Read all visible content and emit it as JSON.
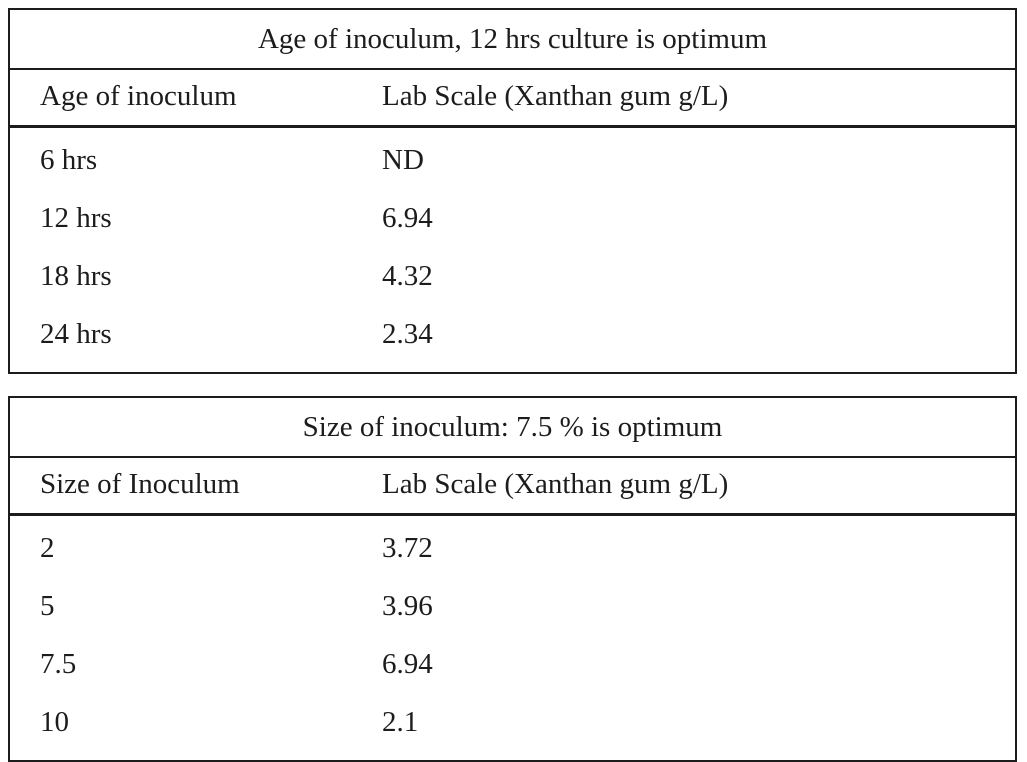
{
  "tables": [
    {
      "title": "Age of inoculum, 12 hrs culture is optimum",
      "columns": [
        "Age of inoculum",
        "Lab Scale (Xanthan gum g/L)"
      ],
      "rows": [
        [
          "6 hrs",
          "ND"
        ],
        [
          "12 hrs",
          "6.94"
        ],
        [
          "18 hrs",
          "4.32"
        ],
        [
          "24 hrs",
          "2.34"
        ]
      ]
    },
    {
      "title": "Size of inoculum: 7.5 % is optimum",
      "columns": [
        "Size of Inoculum",
        "Lab Scale (Xanthan gum g/L)"
      ],
      "rows": [
        [
          "2",
          "3.72"
        ],
        [
          "5",
          "3.96"
        ],
        [
          "7.5",
          "6.94"
        ],
        [
          "10",
          "2.1"
        ]
      ]
    }
  ],
  "colors": {
    "text": "#1c1c1c",
    "border": "#1c1c1c",
    "background": "#ffffff"
  }
}
